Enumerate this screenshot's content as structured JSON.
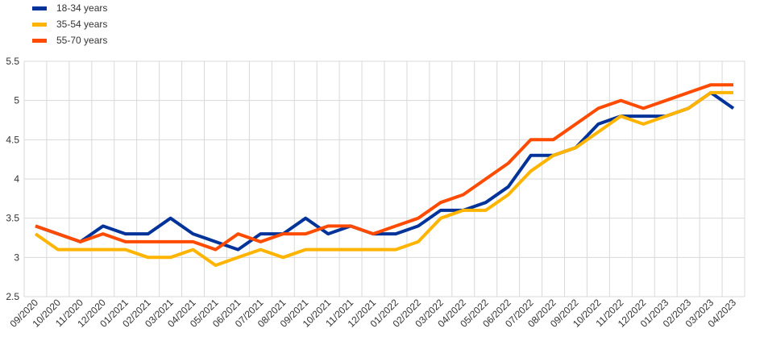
{
  "chart_data": {
    "type": "line",
    "categories": [
      "09/2020",
      "10/2020",
      "11/2020",
      "12/2020",
      "01/2021",
      "02/2021",
      "03/2021",
      "04/2021",
      "05/2021",
      "06/2021",
      "07/2021",
      "08/2021",
      "09/2021",
      "10/2021",
      "11/2021",
      "12/2021",
      "01/2022",
      "02/2022",
      "03/2022",
      "04/2022",
      "05/2022",
      "06/2022",
      "07/2022",
      "08/2022",
      "09/2022",
      "10/2022",
      "11/2022",
      "12/2022",
      "01/2023",
      "02/2023",
      "03/2023",
      "04/2023"
    ],
    "series": [
      {
        "name": "18-34 years",
        "color": "#003399",
        "values": [
          3.4,
          3.3,
          3.2,
          3.4,
          3.3,
          3.3,
          3.5,
          3.3,
          3.2,
          3.1,
          3.3,
          3.3,
          3.5,
          3.3,
          3.4,
          3.3,
          3.3,
          3.4,
          3.6,
          3.6,
          3.7,
          3.9,
          4.3,
          4.3,
          4.4,
          4.7,
          4.8,
          4.8,
          4.8,
          4.9,
          5.1,
          4.9
        ]
      },
      {
        "name": "35-54 years",
        "color": "#FFB400",
        "values": [
          3.3,
          3.1,
          3.1,
          3.1,
          3.1,
          3.0,
          3.0,
          3.1,
          2.9,
          3.0,
          3.1,
          3.0,
          3.1,
          3.1,
          3.1,
          3.1,
          3.1,
          3.2,
          3.5,
          3.6,
          3.6,
          3.8,
          4.1,
          4.3,
          4.4,
          4.6,
          4.8,
          4.7,
          4.8,
          4.9,
          5.1,
          5.1
        ]
      },
      {
        "name": "55-70 years",
        "color": "#FF4B00",
        "values": [
          3.4,
          3.3,
          3.2,
          3.3,
          3.2,
          3.2,
          3.2,
          3.2,
          3.1,
          3.3,
          3.2,
          3.3,
          3.3,
          3.4,
          3.4,
          3.3,
          3.4,
          3.5,
          3.7,
          3.8,
          4.0,
          4.2,
          4.5,
          4.5,
          4.7,
          4.9,
          5.0,
          4.9,
          5.0,
          5.1,
          5.2,
          5.2
        ]
      }
    ],
    "yticks": [
      "2.5",
      "3",
      "3.5",
      "4",
      "4.5",
      "5",
      "5.5"
    ],
    "ylim": [
      2.5,
      5.5
    ],
    "grid": true,
    "legend_position": "top-left"
  }
}
